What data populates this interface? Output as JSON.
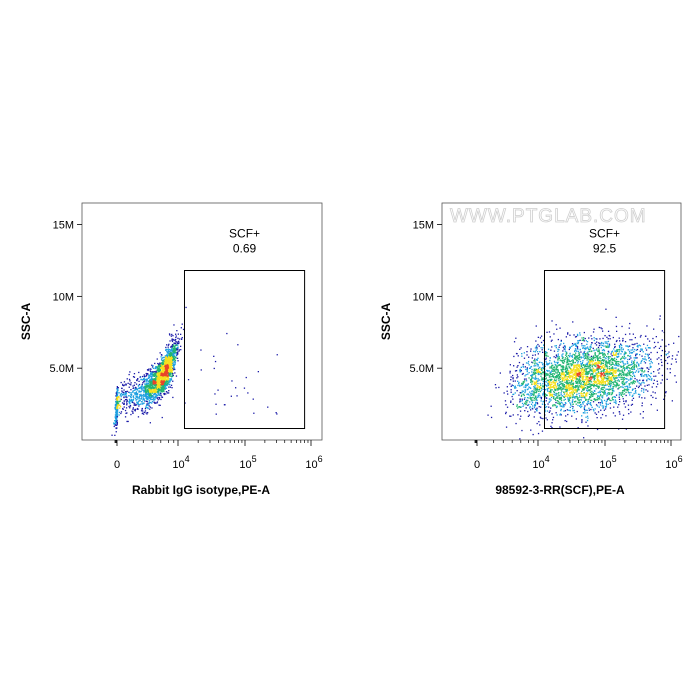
{
  "watermark": "WWW.PTGLAB.COM",
  "colors": {
    "density_low": "#1a1aa8",
    "density_mid_low": "#1ea0e0",
    "density_mid": "#22b573",
    "density_high": "#f5e020",
    "density_peak": "#e8452a",
    "gate": "#000000"
  },
  "chart_data": [
    {
      "type": "scatter",
      "subtype": "flow-cytometry-density",
      "xlabel": "Rabbit IgG isotype,PE-A",
      "ylabel": "SSC-A",
      "x_scale": "biexponential",
      "x_ticks": [
        {
          "value": 0,
          "base": "0",
          "exp": ""
        },
        {
          "value": 10000,
          "base": "10",
          "exp": "4"
        },
        {
          "value": 100000,
          "base": "10",
          "exp": "5"
        },
        {
          "value": 1000000,
          "base": "10",
          "exp": "6"
        }
      ],
      "y_ticks": [
        {
          "value": 5000000,
          "label": "5.0M"
        },
        {
          "value": 10000000,
          "label": "10M"
        },
        {
          "value": 15000000,
          "label": "15M"
        }
      ],
      "ylim": [
        0,
        16500000
      ],
      "gate": {
        "name": "SCF+",
        "percent": "0.69",
        "x_range": [
          12500,
          800000
        ],
        "y_range": [
          800000,
          11800000
        ]
      },
      "population": {
        "x_center": 3500,
        "x_spread": 2600,
        "y_center": 4200000,
        "y_spread": 1200000,
        "correlation": 0.85
      }
    },
    {
      "type": "scatter",
      "subtype": "flow-cytometry-density",
      "xlabel": "98592-3-RR(SCF),PE-A",
      "ylabel": "SSC-A",
      "x_scale": "biexponential",
      "x_ticks": [
        {
          "value": 0,
          "base": "0",
          "exp": ""
        },
        {
          "value": 10000,
          "base": "10",
          "exp": "4"
        },
        {
          "value": 100000,
          "base": "10",
          "exp": "5"
        },
        {
          "value": 1000000,
          "base": "10",
          "exp": "6"
        }
      ],
      "y_ticks": [
        {
          "value": 5000000,
          "label": "5.0M"
        },
        {
          "value": 10000000,
          "label": "10M"
        },
        {
          "value": 15000000,
          "label": "15M"
        }
      ],
      "ylim": [
        0,
        16500000
      ],
      "gate": {
        "name": "SCF+",
        "percent": "92.5",
        "x_range": [
          12500,
          800000
        ],
        "y_range": [
          800000,
          11800000
        ]
      },
      "population": {
        "x_center": 45000,
        "x_spread": 0.55,
        "y_center": 4500000,
        "y_spread": 1300000,
        "correlation": 0.25
      }
    }
  ]
}
